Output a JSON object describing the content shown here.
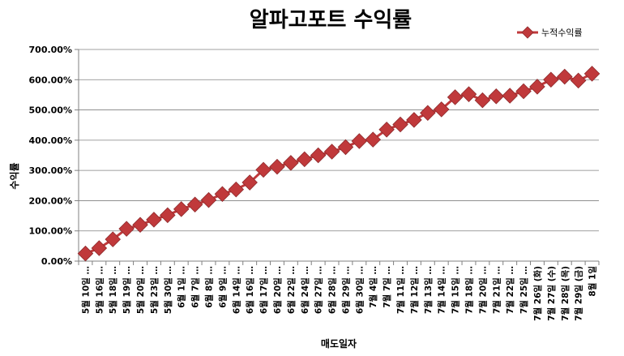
{
  "chart_data": {
    "type": "line",
    "title": "알파고포트 수익률",
    "xlabel": "매도일자",
    "ylabel": "수익률",
    "ylim": [
      0,
      700
    ],
    "yticks": [
      "0.00%",
      "100.00%",
      "200.00%",
      "300.00%",
      "400.00%",
      "500.00%",
      "600.00%",
      "700.00%"
    ],
    "grid": true,
    "legend_position": "top-right",
    "series_color": "#C0393B",
    "categories": [
      "5월 10일 …",
      "5월 16일 …",
      "5월 18일 …",
      "5월 19일 …",
      "5월 20일 …",
      "5월 23일 …",
      "5월 30일 …",
      "6월 1일 …",
      "6월 7일 …",
      "6월 8일 …",
      "6월 9일 …",
      "6월 14일 …",
      "6월 16일 …",
      "6월 17일 …",
      "6월 20일 …",
      "6월 22일 …",
      "6월 24일 …",
      "6월 27일 …",
      "6월 28일 …",
      "6월 29일 …",
      "6월 30일 …",
      "7월 4일 …",
      "7월 7일 …",
      "7월 11일 …",
      "7월 12일 …",
      "7월 13일 …",
      "7월 14일 …",
      "7월 15일 …",
      "7월 18일 …",
      "7월 20일 …",
      "7월 21일 …",
      "7월 22일 …",
      "7월 25일 …",
      "7월 26일 (화)",
      "7월 27일 (수)",
      "7월 28일 (목)",
      "7월 29일 (금)",
      "8월 1일"
    ],
    "series": [
      {
        "name": "누적수익률",
        "values": [
          25,
          43,
          72,
          107,
          120,
          137,
          152,
          172,
          187,
          202,
          222,
          237,
          260,
          302,
          312,
          325,
          337,
          350,
          362,
          377,
          397,
          402,
          435,
          452,
          467,
          490,
          502,
          542,
          552,
          532,
          545,
          547,
          562,
          577,
          600,
          610,
          597,
          620
        ]
      }
    ]
  }
}
